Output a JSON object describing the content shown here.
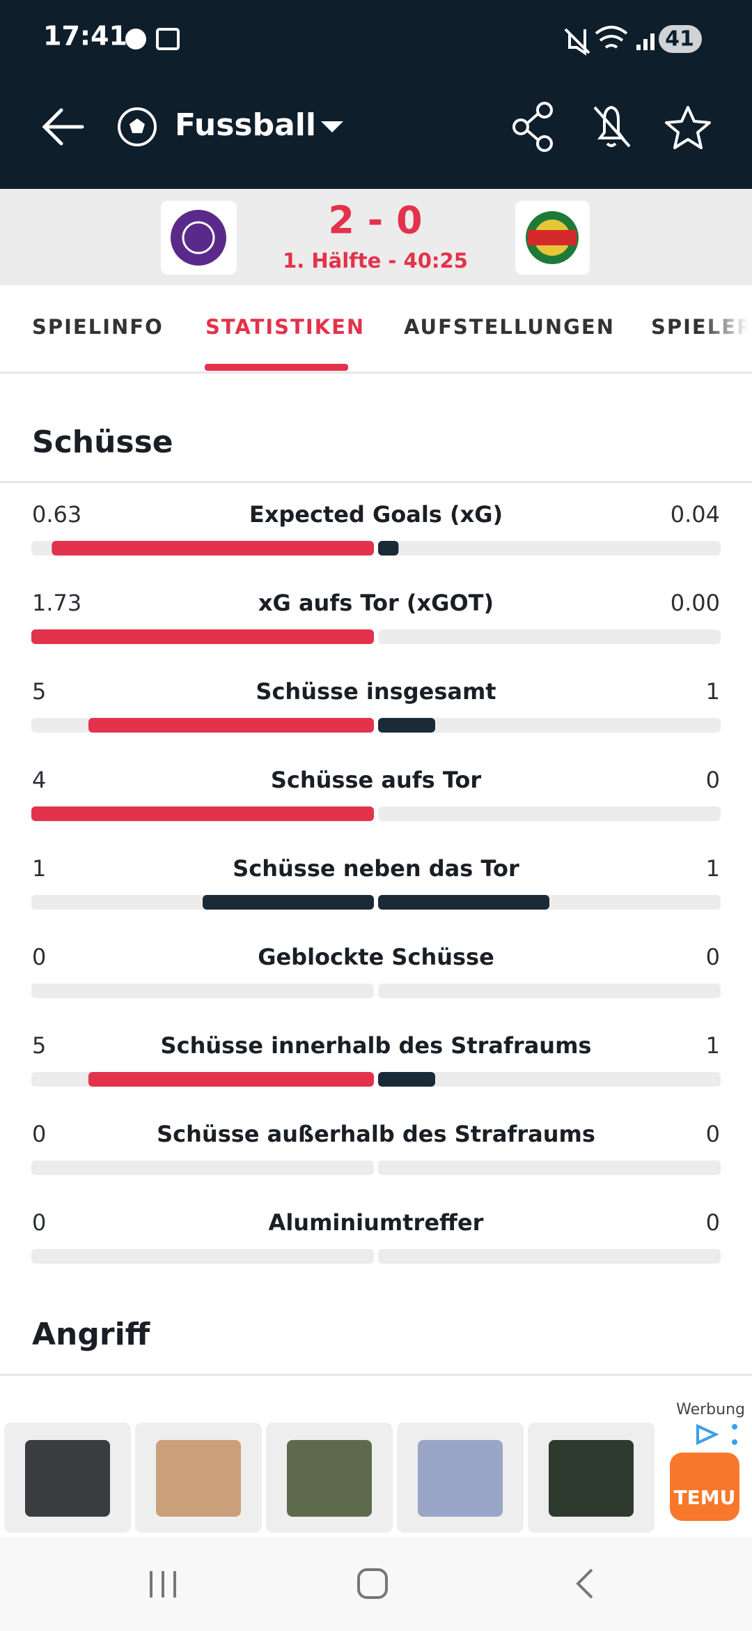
{
  "status": {
    "time": "17:41",
    "battery": "41"
  },
  "header": {
    "title": "Fussball"
  },
  "match": {
    "score": "2 - 0",
    "status": "1. Hälfte - 40:25"
  },
  "tabs": [
    "SPIELINFO",
    "STATISTIKEN",
    "AUFSTELLUNGEN",
    "SPIELER"
  ],
  "sections": [
    {
      "title": "Schüsse",
      "stats": [
        {
          "home": "0.63",
          "label": "Expected Goals (xG)",
          "away": "0.04"
        },
        {
          "home": "1.73",
          "label": "xG aufs Tor (xGOT)",
          "away": "0.00"
        },
        {
          "home": "5",
          "label": "Schüsse insgesamt",
          "away": "1"
        },
        {
          "home": "4",
          "label": "Schüsse aufs Tor",
          "away": "0"
        },
        {
          "home": "1",
          "label": "Schüsse neben das Tor",
          "away": "1"
        },
        {
          "home": "0",
          "label": "Geblockte Schüsse",
          "away": "0"
        },
        {
          "home": "5",
          "label": "Schüsse innerhalb des Strafraums",
          "away": "1"
        },
        {
          "home": "0",
          "label": "Schüsse außerhalb des Strafraums",
          "away": "0"
        },
        {
          "home": "0",
          "label": "Aluminiumtreffer",
          "away": "0"
        }
      ]
    },
    {
      "title": "Angriff"
    }
  ],
  "ad": {
    "label": "Werbung",
    "brand": "TEMU"
  }
}
